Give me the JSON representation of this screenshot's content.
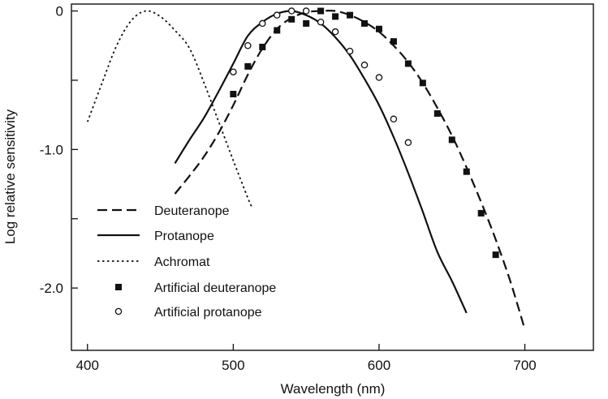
{
  "chart_data": {
    "type": "line",
    "xlabel": "Wavelength (nm)",
    "ylabel": "Log relative sensitivity",
    "xlim": [
      389,
      747
    ],
    "ylim": [
      -2.45,
      0.05
    ],
    "x_ticks": [
      400,
      500,
      600,
      700
    ],
    "x_tick_labels": [
      "400",
      "500",
      "600",
      "700"
    ],
    "y_ticks": [
      0,
      -0.5,
      -1.0,
      -1.5,
      -2.0
    ],
    "y_tick_labels": [
      "0",
      "",
      "-1.0",
      "",
      "-2.0"
    ],
    "grid": false,
    "legend_position": "lower-left",
    "series": [
      {
        "name": "Deuteranope",
        "kind": "line",
        "style": "dashed",
        "x": [
          460,
          470,
          480,
          490,
          500,
          510,
          520,
          530,
          540,
          550,
          560,
          570,
          580,
          590,
          600,
          610,
          620,
          630,
          640,
          650,
          660,
          670,
          680,
          690,
          700
        ],
        "y": [
          -1.32,
          -1.19,
          -1.05,
          -0.88,
          -0.68,
          -0.46,
          -0.27,
          -0.13,
          -0.05,
          -0.01,
          0.0,
          0.0,
          -0.03,
          -0.08,
          -0.15,
          -0.25,
          -0.37,
          -0.52,
          -0.7,
          -0.9,
          -1.13,
          -1.38,
          -1.65,
          -1.95,
          -2.3
        ]
      },
      {
        "name": "Protanope",
        "kind": "line",
        "style": "solid",
        "x": [
          460,
          470,
          480,
          490,
          500,
          510,
          520,
          530,
          540,
          550,
          560,
          570,
          580,
          590,
          600,
          610,
          620,
          630,
          640,
          650,
          660
        ],
        "y": [
          -1.1,
          -0.93,
          -0.77,
          -0.58,
          -0.38,
          -0.18,
          -0.08,
          -0.02,
          0.0,
          -0.03,
          -0.09,
          -0.19,
          -0.32,
          -0.49,
          -0.68,
          -0.91,
          -1.17,
          -1.45,
          -1.74,
          -1.95,
          -2.18
        ]
      },
      {
        "name": "Achromat",
        "kind": "line",
        "style": "dotted",
        "x": [
          400,
          410,
          420,
          430,
          440,
          450,
          460,
          470,
          480,
          490,
          500,
          510,
          513
        ],
        "y": [
          -0.8,
          -0.52,
          -0.25,
          -0.07,
          0.0,
          -0.04,
          -0.14,
          -0.27,
          -0.52,
          -0.8,
          -1.08,
          -1.35,
          -1.42
        ]
      },
      {
        "name": "Artificial deuteranope",
        "kind": "markers",
        "marker": "filled-square",
        "x": [
          500,
          510,
          520,
          530,
          540,
          550,
          560,
          570,
          580,
          590,
          600,
          610,
          620,
          630,
          640,
          650,
          660,
          670,
          680
        ],
        "y": [
          -0.6,
          -0.4,
          -0.26,
          -0.14,
          -0.06,
          -0.09,
          0.0,
          -0.04,
          -0.03,
          -0.09,
          -0.13,
          -0.22,
          -0.38,
          -0.52,
          -0.74,
          -0.93,
          -1.16,
          -1.46,
          -1.76
        ]
      },
      {
        "name": "Artificial protanope",
        "kind": "markers",
        "marker": "open-circle",
        "x": [
          500,
          510,
          520,
          530,
          540,
          550,
          560,
          570,
          580,
          590,
          600,
          610,
          620
        ],
        "y": [
          -0.44,
          -0.25,
          -0.09,
          -0.03,
          0.0,
          0.0,
          -0.08,
          -0.15,
          -0.29,
          -0.39,
          -0.48,
          -0.78,
          -0.95
        ]
      }
    ]
  }
}
